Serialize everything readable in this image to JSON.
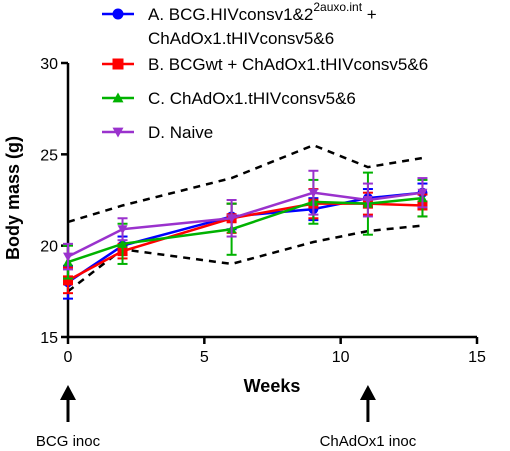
{
  "chart_data": {
    "type": "line",
    "xlabel": "Weeks",
    "ylabel": "Body mass (g)",
    "xlim": [
      0,
      15
    ],
    "ylim": [
      15,
      30
    ],
    "xticks": [
      0,
      5,
      10,
      15
    ],
    "yticks": [
      15,
      20,
      25,
      30
    ],
    "grid": false,
    "legend_position": "top",
    "series": [
      {
        "name_main": "A. BCG.HIVconsv1&2",
        "name_sup": "2auxo.int",
        "name_suffix": " +",
        "name_line2": "ChAdOx1.tHIVconsv5&6",
        "color": "#0000ff",
        "marker": "circle",
        "x": [
          0,
          2,
          6,
          9,
          11,
          13
        ],
        "y": [
          18.0,
          20.0,
          21.6,
          22.0,
          22.6,
          22.9
        ],
        "err": [
          0.9,
          0.5,
          0.7,
          0.6,
          0.5,
          0.5
        ]
      },
      {
        "name_main": "B. BCGwt + ChAdOx1.tHIVconsv5&6",
        "color": "#ff0000",
        "marker": "square",
        "x": [
          0,
          2,
          6,
          9,
          11,
          13
        ],
        "y": [
          18.1,
          19.7,
          21.5,
          22.3,
          22.3,
          22.2
        ],
        "err": [
          0.7,
          0.4,
          0.8,
          0.8,
          0.6,
          0.6
        ]
      },
      {
        "name_main": "C. ChAdOx1.tHIVconsv5&6",
        "color": "#00b200",
        "marker": "triangle-up",
        "x": [
          0,
          2,
          6,
          9,
          11,
          13
        ],
        "y": [
          19.1,
          20.1,
          20.9,
          22.4,
          22.3,
          22.6
        ],
        "err": [
          0.9,
          1.1,
          1.4,
          1.2,
          1.7,
          1.0
        ]
      },
      {
        "name_main": "D. Naive",
        "color": "#9a32cd",
        "marker": "triangle-down",
        "x": [
          0,
          2,
          6,
          9,
          11,
          13
        ],
        "y": [
          19.4,
          20.9,
          21.5,
          22.9,
          22.5,
          22.9
        ],
        "err": [
          0.7,
          0.6,
          1.0,
          1.2,
          0.9,
          0.8
        ]
      }
    ],
    "bounds": [
      {
        "x": [
          0,
          2,
          6,
          9,
          11,
          13
        ],
        "y": [
          21.3,
          22.2,
          23.7,
          25.5,
          24.3,
          24.8
        ]
      },
      {
        "x": [
          0,
          2,
          6,
          9,
          11,
          13
        ],
        "y": [
          17.5,
          19.8,
          19.0,
          20.2,
          20.8,
          21.1
        ]
      }
    ],
    "annotations": [
      {
        "text": "BCG inoc",
        "x": 0
      },
      {
        "text": "ChAdOx1 inoc",
        "x": 11
      }
    ]
  }
}
